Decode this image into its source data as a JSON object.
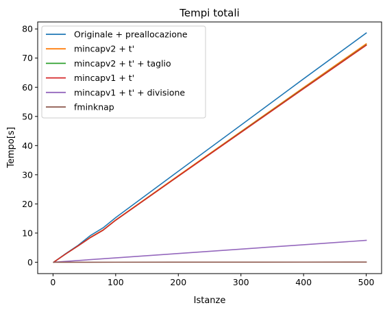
{
  "chart_data": {
    "type": "line",
    "title": "Tempi totali",
    "xlabel": "Istanze",
    "ylabel": "Tempo[s]",
    "xlim": [
      -24.5,
      524.5
    ],
    "ylim": [
      -3.9,
      82.4
    ],
    "xticks": [
      0,
      100,
      200,
      300,
      400,
      500
    ],
    "yticks": [
      0,
      10,
      20,
      30,
      40,
      50,
      60,
      70,
      80
    ],
    "grid": false,
    "legend_position": "upper left",
    "series": [
      {
        "name": "Originale + preallocazione",
        "color": "#1f77b4",
        "x": [
          1,
          20,
          40,
          60,
          80,
          100,
          200,
          300,
          400,
          500
        ],
        "y": [
          0,
          2.9,
          5.8,
          9.2,
          11.8,
          15.3,
          31.2,
          47.0,
          62.9,
          78.6
        ]
      },
      {
        "name": "mincapv2 + t'",
        "color": "#ff7f0e",
        "x": [
          1,
          20,
          40,
          60,
          80,
          100,
          200,
          300,
          400,
          500
        ],
        "y": [
          0,
          2.8,
          5.6,
          8.6,
          11.1,
          14.5,
          29.7,
          44.8,
          59.9,
          74.9
        ]
      },
      {
        "name": "mincapv2 + t' + taglio",
        "color": "#2ca02c",
        "x": [
          1,
          20,
          40,
          60,
          80,
          100,
          200,
          300,
          400,
          500
        ],
        "y": [
          0,
          2.8,
          5.6,
          8.5,
          11.0,
          14.4,
          29.5,
          44.6,
          59.6,
          74.5
        ]
      },
      {
        "name": "mincapv1 + t'",
        "color": "#d62728",
        "x": [
          1,
          20,
          40,
          60,
          80,
          100,
          200,
          300,
          400,
          500
        ],
        "y": [
          0,
          2.8,
          5.6,
          8.5,
          11.0,
          14.4,
          29.5,
          44.5,
          59.5,
          74.4
        ]
      },
      {
        "name": "mincapv1 + t' + divisione",
        "color": "#9467bd",
        "x": [
          1,
          100,
          200,
          300,
          400,
          500
        ],
        "y": [
          0,
          1.5,
          3.0,
          4.5,
          6.0,
          7.5
        ]
      },
      {
        "name": "fminknap",
        "color": "#8c564b",
        "x": [
          1,
          100,
          200,
          300,
          400,
          500
        ],
        "y": [
          0,
          0.01,
          0.02,
          0.03,
          0.04,
          0.05
        ]
      }
    ]
  }
}
